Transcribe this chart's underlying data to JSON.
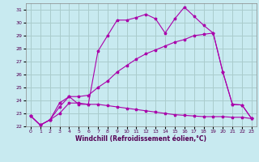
{
  "xlabel": "Windchill (Refroidissement éolien,°C)",
  "bg_color": "#c8eaf0",
  "grid_color": "#aacccc",
  "line_color": "#aa00aa",
  "xlim": [
    -0.5,
    23.5
  ],
  "ylim": [
    22,
    31.5
  ],
  "xticks": [
    0,
    1,
    2,
    3,
    4,
    5,
    6,
    7,
    8,
    9,
    10,
    11,
    12,
    13,
    14,
    15,
    16,
    17,
    18,
    19,
    20,
    21,
    22,
    23
  ],
  "yticks": [
    22,
    23,
    24,
    25,
    26,
    27,
    28,
    29,
    30,
    31
  ],
  "line1_x": [
    0,
    1,
    2,
    3,
    4,
    5,
    6,
    7,
    8,
    9,
    10,
    11,
    12,
    13,
    14,
    15,
    16,
    17,
    18,
    19,
    20,
    21,
    22,
    23
  ],
  "line1_y": [
    22.8,
    22.1,
    22.5,
    23.8,
    24.3,
    23.7,
    23.7,
    27.8,
    29.0,
    30.2,
    30.2,
    30.4,
    30.65,
    30.3,
    29.2,
    30.3,
    31.2,
    30.5,
    29.8,
    29.2,
    26.2,
    23.7,
    23.65,
    22.6
  ],
  "line2_x": [
    0,
    1,
    2,
    3,
    4,
    5,
    6,
    7,
    8,
    9,
    10,
    11,
    12,
    13,
    14,
    15,
    16,
    17,
    18,
    19,
    20,
    21,
    22,
    23
  ],
  "line2_y": [
    22.8,
    22.1,
    22.5,
    23.5,
    24.3,
    24.3,
    24.4,
    25.0,
    25.5,
    26.2,
    26.7,
    27.2,
    27.6,
    27.9,
    28.2,
    28.5,
    28.7,
    29.0,
    29.1,
    29.2,
    26.2,
    23.7,
    23.65,
    22.6
  ],
  "line3_x": [
    0,
    1,
    2,
    3,
    4,
    5,
    6,
    7,
    8,
    9,
    10,
    11,
    12,
    13,
    14,
    15,
    16,
    17,
    18,
    19,
    20,
    21,
    22,
    23
  ],
  "line3_y": [
    22.8,
    22.1,
    22.5,
    23.0,
    23.8,
    23.8,
    23.7,
    23.7,
    23.6,
    23.5,
    23.4,
    23.3,
    23.2,
    23.1,
    23.0,
    22.9,
    22.85,
    22.8,
    22.75,
    22.75,
    22.75,
    22.7,
    22.7,
    22.6
  ]
}
